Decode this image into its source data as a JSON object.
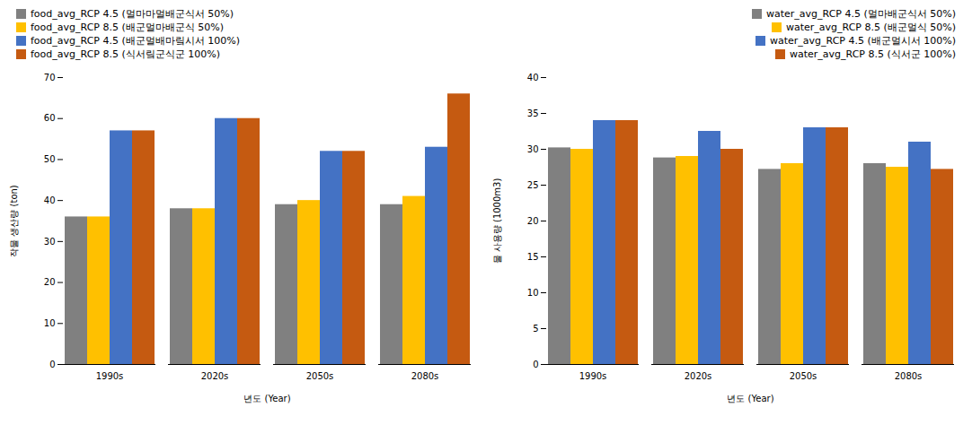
{
  "chart_data": [
    {
      "type": "bar",
      "categories": [
        "1990s",
        "2020s",
        "2050s",
        "2080s"
      ],
      "series": [
        {
          "name": "food_avg_RCP 4.5 (멀마마멀배군식서 50%)",
          "color": "#808080",
          "values": [
            36,
            38,
            39,
            39
          ]
        },
        {
          "name": "food_avg_RCP 8.5 (배군멀마배군식 50%)",
          "color": "#FFC000",
          "values": [
            36,
            38,
            40,
            41
          ]
        },
        {
          "name": "food_avg_RCP 4.5 (배군멀배마맄시서 100%)",
          "color": "#4472C4",
          "values": [
            57,
            60,
            52,
            53
          ]
        },
        {
          "name": "food_avg_RCP 8.5 (식서맄군식군 100%)",
          "color": "#C55A11",
          "values": [
            57,
            60,
            52,
            66
          ]
        }
      ],
      "xlabel": "년도 (Year)",
      "ylabel": "작물 생산량 (ton)",
      "ylim": [
        0,
        70
      ],
      "yticks": [
        0,
        10,
        20,
        30,
        40,
        50,
        60,
        70
      ],
      "legend": "upper left",
      "grid": false
    },
    {
      "type": "bar",
      "categories": [
        "1990s",
        "2020s",
        "2050s",
        "2080s"
      ],
      "series": [
        {
          "name": "water_avg_RCP 4.5 (멀마배군식서 50%)",
          "color": "#808080",
          "values": [
            30.2,
            28.8,
            27.2,
            28.0
          ]
        },
        {
          "name": "water_avg_RCP 8.5 (배군멀식 50%)",
          "color": "#FFC000",
          "values": [
            30.0,
            29.0,
            28.0,
            27.5
          ]
        },
        {
          "name": "water_avg_RCP 4.5 (배군멀시서 100%)",
          "color": "#4472C4",
          "values": [
            34.0,
            32.5,
            33.0,
            31.0
          ]
        },
        {
          "name": "water_avg_RCP 8.5 (식서군 100%)",
          "color": "#C55A11",
          "values": [
            34.0,
            30.0,
            33.0,
            27.2
          ]
        }
      ],
      "xlabel": "년도 (Year)",
      "ylabel": "물 사용량 (1000m3)",
      "ylim": [
        0,
        40
      ],
      "yticks": [
        0,
        5,
        10,
        15,
        20,
        25,
        30,
        35,
        40
      ],
      "legend": "upper right",
      "grid": false
    }
  ]
}
